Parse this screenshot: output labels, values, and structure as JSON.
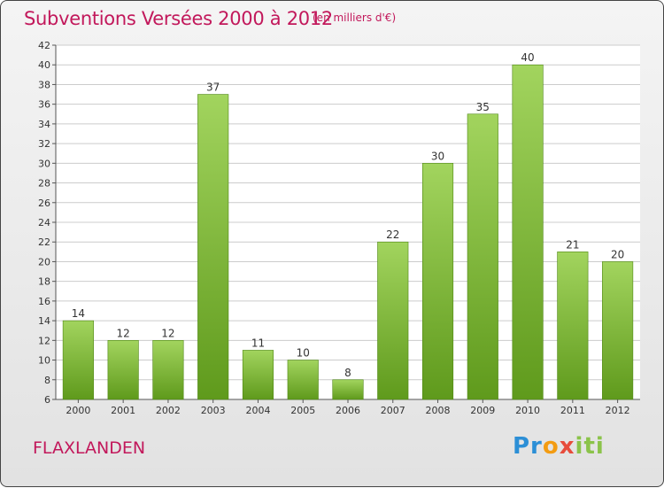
{
  "header": {
    "title": "Subventions Versées 2000 à 2012",
    "subtitle": "(en milliers d'€)"
  },
  "footer": {
    "place": "FLAXLANDEN",
    "logo_text": "Proxiti",
    "logo_colors": [
      "#2c8fd6",
      "#f39c12",
      "#e74c3c",
      "#8bc34a"
    ]
  },
  "colors": {
    "bar_top": "#a2d45e",
    "bar_bottom": "#5f9a1c",
    "bar_edge": "#4f8714",
    "title": "#c2185b",
    "grid": "#cccccc"
  },
  "chart_data": {
    "type": "bar",
    "title": "Subventions Versées 2000 à 2012",
    "subtitle": "(en milliers d'€)",
    "categories": [
      "2000",
      "2001",
      "2002",
      "2003",
      "2004",
      "2005",
      "2006",
      "2007",
      "2008",
      "2009",
      "2010",
      "2011",
      "2012"
    ],
    "values": [
      14,
      12,
      12,
      37,
      11,
      10,
      8,
      22,
      30,
      35,
      40,
      21,
      20
    ],
    "data_labels": [
      "14",
      "12",
      "12",
      "37",
      "11",
      "10",
      "8",
      "22",
      "30",
      "35",
      "40",
      "21",
      "20"
    ],
    "ylim": [
      6,
      42
    ],
    "yticks": [
      6,
      8,
      10,
      12,
      14,
      16,
      18,
      20,
      22,
      24,
      26,
      28,
      30,
      32,
      34,
      36,
      38,
      40,
      42
    ],
    "grid": true,
    "legend": "none"
  }
}
